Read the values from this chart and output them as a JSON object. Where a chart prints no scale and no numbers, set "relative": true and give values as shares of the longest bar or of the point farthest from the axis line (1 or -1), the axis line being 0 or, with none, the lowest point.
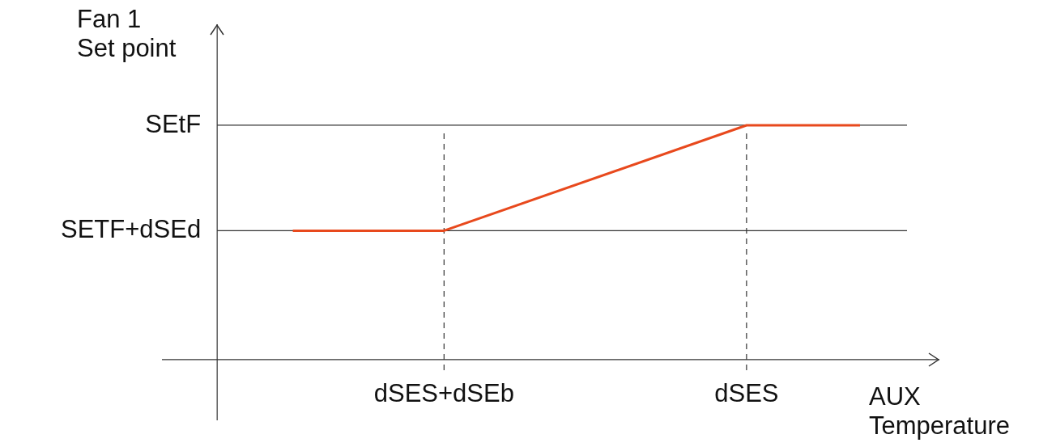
{
  "chart_data": {
    "type": "line",
    "xlabel": "AUX\nTemperature",
    "ylabel": "Fan 1\nSet point",
    "relative": true,
    "categories": [
      null,
      null,
      null,
      null,
      null,
      null,
      "dSES+dSEb",
      null,
      null,
      null,
      null,
      null,
      null,
      null,
      "dSES",
      null,
      null,
      null
    ],
    "series": [
      {
        "color": "#e8491d",
        "values": [
          null,
          null,
          0.55,
          null,
          null,
          null,
          0.55,
          null,
          null,
          null,
          null,
          null,
          null,
          null,
          1,
          null,
          null,
          1
        ]
      }
    ],
    "ref_lines": [
      {
        "axis": "y",
        "value": 1,
        "label": "SEtF",
        "color": "#333333"
      },
      {
        "axis": "y",
        "value": 0.55,
        "label": "SETF+dSEd",
        "color": "#333333"
      },
      {
        "axis": "x",
        "value": "dSES+dSEb",
        "color": "#333333",
        "line_style": "dashed"
      },
      {
        "axis": "x",
        "value": "dSES",
        "color": "#333333",
        "line_style": "dashed"
      }
    ],
    "legend": false
  }
}
